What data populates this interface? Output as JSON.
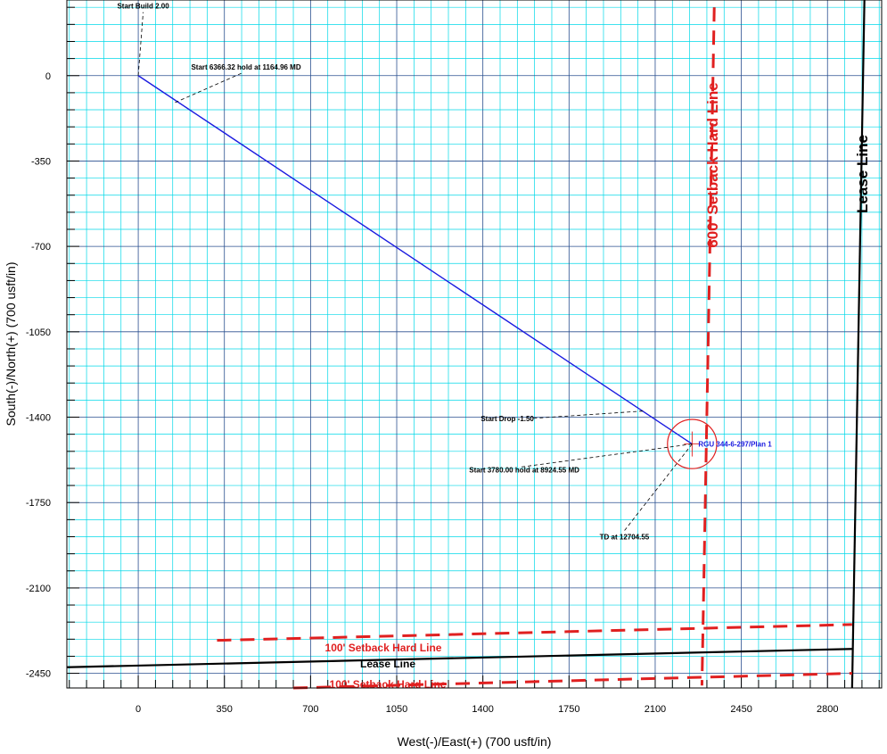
{
  "chart_data": {
    "type": "line",
    "xlabel": "West(-)/East(+) (700 usft/in)",
    "ylabel": "South(-)/North(+) (700 usft/in)",
    "x_ticks": [
      0,
      350,
      700,
      1050,
      1400,
      1750,
      2100,
      2450,
      2800
    ],
    "y_ticks": [
      0,
      -350,
      -700,
      -1050,
      -1400,
      -1750,
      -2100,
      -2450
    ],
    "xlim": [
      -290,
      3020
    ],
    "ylim": [
      -2510,
      310
    ],
    "grid": true,
    "series": [
      {
        "name": "RGU 344-6-297/Plan 1",
        "color": "#1a1adf",
        "x": [
          0,
          0,
          2250
        ],
        "y": [
          0,
          0,
          -1510
        ]
      }
    ],
    "well_label": "RGU 344-6-297/Plan 1",
    "annotations": [
      {
        "text": "Start Build 2.00",
        "x": 0,
        "y": 0,
        "label_x": 20,
        "label_y": 260
      },
      {
        "text": "Start 6366.32 hold at 1164.96 MD",
        "x": 150,
        "y": -110,
        "label_x": 420,
        "label_y": 10
      },
      {
        "text": "Start Drop -1.50",
        "x": 2050,
        "y": -1375,
        "label_x": 1600,
        "label_y": -1405
      },
      {
        "text": "Start 3780.00 hold at 8924.55 MD",
        "x": 2250,
        "y": -1510,
        "label_x": 1550,
        "label_y": -1605
      },
      {
        "text": "TD at 12704.55",
        "x": 2250,
        "y": -1510,
        "label_x": 1975,
        "label_y": -1865
      }
    ],
    "lines": [
      {
        "label": "600' Setback Hard Line",
        "style": "red-dashed",
        "x": [
          2340,
          2290
        ],
        "y": [
          280,
          -2500
        ]
      },
      {
        "label": "Lease Line",
        "style": "black-solid",
        "x": [
          2950,
          2900
        ],
        "y": [
          310,
          -2510
        ]
      },
      {
        "label": "100' Setback Hard Line",
        "style": "red-dashed",
        "x": [
          320,
          2900
        ],
        "y": [
          -2315,
          -2250
        ]
      },
      {
        "label": "Lease Line",
        "style": "black-solid",
        "x": [
          -290,
          2900
        ],
        "y": [
          -2425,
          -2350
        ]
      },
      {
        "label": "100' Setback Hard Line",
        "style": "red-dashed",
        "x": [
          630,
          2900
        ],
        "y": [
          -2510,
          -2450
        ]
      }
    ],
    "target_circle": {
      "x": 2250,
      "y": -1510,
      "radius": 100,
      "color": "#e02020"
    }
  }
}
